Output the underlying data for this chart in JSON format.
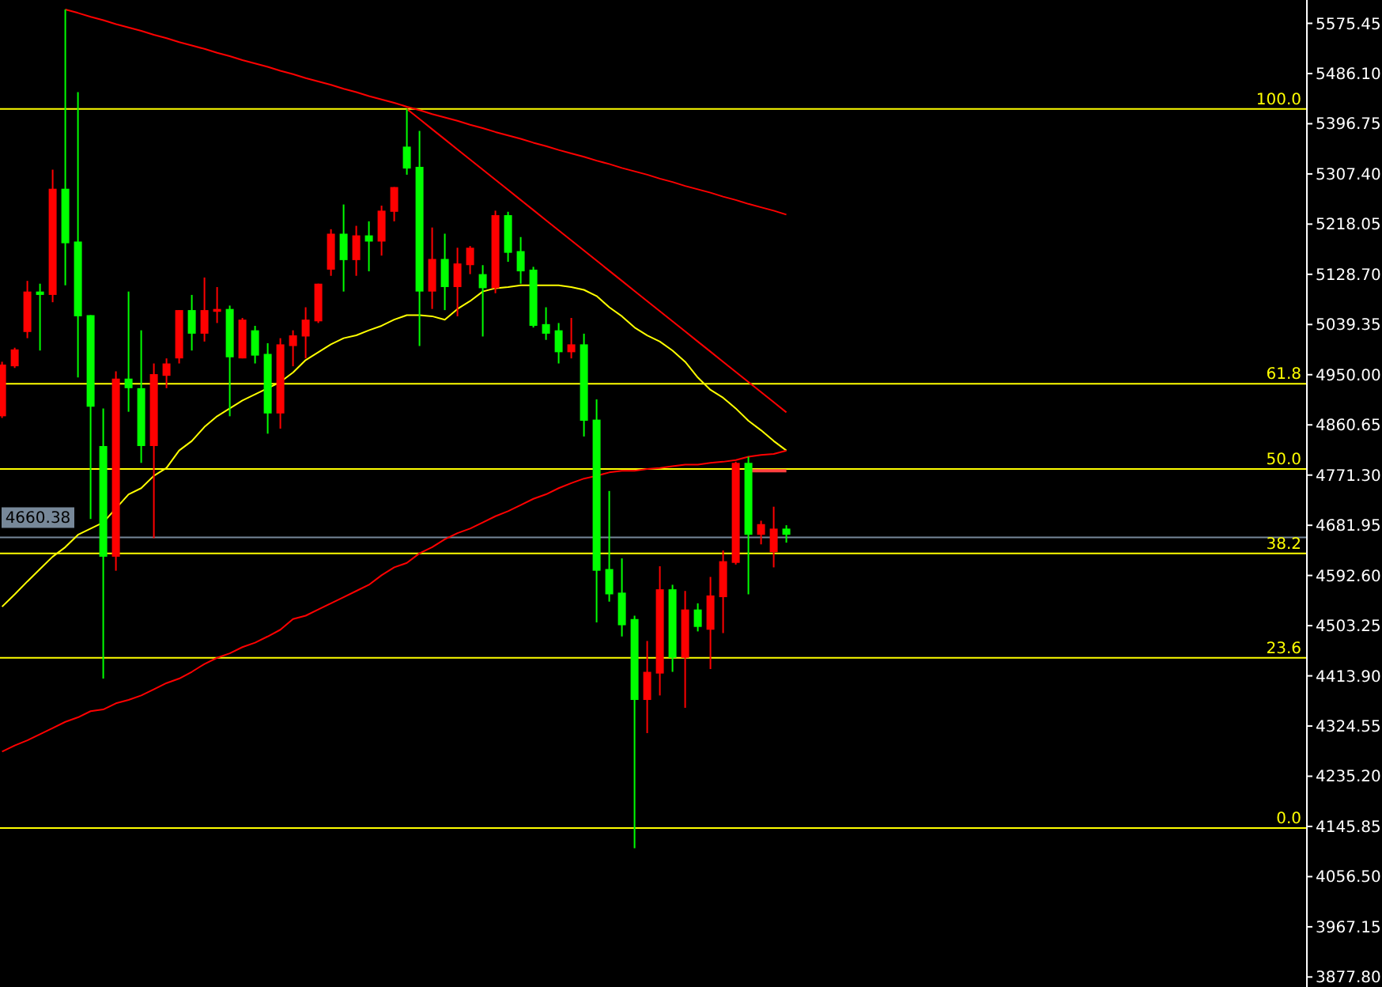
{
  "chart_data": {
    "type": "candlestick",
    "tick_labels": "y",
    "ylim": [
      3860,
      5617
    ],
    "yticks": [
      5575.45,
      {
        "value": 5486.1,
        "label": "5486.10"
      },
      5396.75,
      {
        "value": 5307.4,
        "label": "5307.40"
      },
      5218.05,
      {
        "value": 5128.7,
        "label": "5128.70"
      },
      5039.35,
      {
        "value": 4950,
        "label": "4950.00"
      },
      4860.65,
      {
        "value": 4771.3,
        "label": "4771.30"
      },
      4681.95,
      {
        "value": 4592.6,
        "label": "4592.60"
      },
      4503.25,
      {
        "value": 4413.9,
        "label": "4413.90"
      },
      4324.55,
      {
        "value": 4235.2,
        "label": "4235.20"
      },
      4145.85,
      {
        "value": 4056.5,
        "label": "4056.50"
      },
      3967.15,
      {
        "value": 3877.8,
        "label": "3877.80"
      }
    ],
    "categories": [
      null,
      null,
      null,
      null,
      null,
      null,
      null,
      null,
      null,
      null,
      null,
      null,
      null,
      null,
      null,
      null,
      null,
      null,
      null,
      null,
      null,
      null,
      null,
      null,
      null,
      null,
      null,
      null,
      null,
      null,
      null,
      null,
      null,
      null,
      null,
      null,
      null,
      null,
      null,
      null,
      null,
      null,
      null,
      null,
      null,
      null,
      null,
      null,
      null,
      null,
      null,
      null,
      null,
      null,
      null,
      null,
      null,
      null,
      null,
      null,
      null,
      null,
      null
    ],
    "ohlc": [
      [
        4876,
        4973,
        4873,
        4968
      ],
      [
        4965,
        4998,
        4962,
        4995
      ],
      [
        5026,
        5117,
        5015,
        5098
      ],
      [
        5098,
        5112,
        4993,
        5092
      ],
      [
        5092,
        5315,
        5079,
        5281
      ],
      [
        5281,
        5600,
        5109,
        5184
      ],
      [
        5187,
        5453,
        4945,
        5054
      ],
      [
        5056,
        5056,
        4693,
        4893
      ],
      [
        4823,
        4890,
        4409,
        4626
      ],
      [
        4626,
        4956,
        4601,
        4943
      ],
      [
        4943,
        5098,
        4884,
        4926
      ],
      [
        4926,
        5029,
        4793,
        4823
      ],
      [
        4823,
        4970,
        4659,
        4951
      ],
      [
        4948,
        4979,
        4926,
        4970
      ],
      [
        4979,
        5065,
        4970,
        5065
      ],
      [
        5065,
        5092,
        4993,
        5023
      ],
      [
        5023,
        5123,
        5009,
        5065
      ],
      [
        5062,
        5106,
        5042,
        5067
      ],
      [
        5067,
        5073,
        4876,
        4981
      ],
      [
        4979,
        5051,
        4979,
        5048
      ],
      [
        5029,
        5037,
        4970,
        4984
      ],
      [
        4987,
        5006,
        4845,
        4881
      ],
      [
        4881,
        5015,
        4854,
        5004
      ],
      [
        5001,
        5029,
        4965,
        5020
      ],
      [
        5018,
        5070,
        4979,
        5048
      ],
      [
        5045,
        5112,
        5042,
        5112
      ],
      [
        5137,
        5209,
        5126,
        5201
      ],
      [
        5201,
        5253,
        5098,
        5154
      ],
      [
        5154,
        5215,
        5126,
        5198
      ],
      [
        5198,
        5223,
        5134,
        5187
      ],
      [
        5187,
        5251,
        5162,
        5242
      ],
      [
        5240,
        5284,
        5223,
        5284
      ],
      [
        5356,
        5423,
        5306,
        5317
      ],
      [
        5320,
        5384,
        5001,
        5098
      ],
      [
        5098,
        5212,
        5067,
        5156
      ],
      [
        5156,
        5201,
        5065,
        5106
      ],
      [
        5106,
        5176,
        5054,
        5148
      ],
      [
        5145,
        5179,
        5129,
        5176
      ],
      [
        5129,
        5145,
        5018,
        5104
      ],
      [
        5104,
        5242,
        5095,
        5234
      ],
      [
        5234,
        5240,
        5151,
        5167
      ],
      [
        5170,
        5195,
        5112,
        5134
      ],
      [
        5137,
        5142,
        5034,
        5037
      ],
      [
        5040,
        5070,
        5012,
        5023
      ],
      [
        5029,
        5042,
        4970,
        4990
      ],
      [
        4990,
        5051,
        4979,
        5004
      ],
      [
        5004,
        5023,
        4840,
        4868
      ],
      [
        4870,
        4906,
        4509,
        4601
      ],
      [
        4604,
        4743,
        4546,
        4559
      ],
      [
        4562,
        4623,
        4484,
        4504
      ],
      [
        4515,
        4521,
        4107,
        4371
      ],
      [
        4371,
        4476,
        4312,
        4421
      ],
      [
        4418,
        4609,
        4379,
        4568
      ],
      [
        4568,
        4576,
        4421,
        4446
      ],
      [
        4446,
        4565,
        4357,
        4532
      ],
      [
        4532,
        4543,
        4493,
        4501
      ],
      [
        4496,
        4590,
        4426,
        4557
      ],
      [
        4554,
        4637,
        4490,
        4618
      ],
      [
        4615,
        4795,
        4612,
        4793
      ],
      [
        4793,
        4804,
        4559,
        4665
      ],
      [
        4665,
        4690,
        4648,
        4684
      ],
      [
        4634,
        4715,
        4607,
        4676
      ],
      [
        4676,
        4682,
        4651,
        4665
      ]
    ],
    "colors": [
      "#ff0000",
      "#ff0000",
      "#ff0000",
      "#00ff00",
      "#ff0000",
      "#00ff00",
      "#00ff00",
      "#00ff00",
      "#00ff00",
      "#ff0000",
      "#00ff00",
      "#00ff00",
      "#ff0000",
      "#ff0000",
      "#ff0000",
      "#00ff00",
      "#ff0000",
      "#ff0000",
      "#00ff00",
      "#ff0000",
      "#00ff00",
      "#00ff00",
      "#ff0000",
      "#ff0000",
      "#ff0000",
      "#ff0000",
      "#ff0000",
      "#00ff00",
      "#ff0000",
      "#00ff00",
      "#ff0000",
      "#ff0000",
      "#00ff00",
      "#00ff00",
      "#ff0000",
      "#00ff00",
      "#ff0000",
      "#ff0000",
      "#00ff00",
      "#ff0000",
      "#00ff00",
      "#00ff00",
      "#00ff00",
      "#00ff00",
      "#00ff00",
      "#ff0000",
      "#00ff00",
      "#00ff00",
      "#00ff00",
      "#00ff00",
      "#00ff00",
      "#ff0000",
      "#ff0000",
      "#00ff00",
      "#ff0000",
      "#00ff00",
      "#ff0000",
      "#ff0000",
      "#ff0000",
      "#00ff00",
      "#ff0000",
      "#ff0000",
      "#00ff00"
    ],
    "series": [
      {
        "type": "line",
        "color": "#ffff00",
        "values": [
          4537,
          4559,
          4582,
          4604,
          4626,
          4643,
          4665,
          4676,
          4687,
          4712,
          4737,
          4748,
          4770,
          4784,
          4815,
          4832,
          4857,
          4876,
          4890,
          4904,
          4915,
          4926,
          4937,
          4954,
          4976,
          4990,
          5004,
          5015,
          5020,
          5029,
          5037,
          5048,
          5056,
          5056,
          5054,
          5048,
          5067,
          5081,
          5098,
          5104,
          5106,
          5109,
          5109,
          5109,
          5109,
          5106,
          5101,
          5090,
          5070,
          5054,
          5034,
          5020,
          5009,
          4993,
          4973,
          4945,
          4923,
          4909,
          4890,
          4868,
          4851,
          4832,
          4815
        ]
      },
      {
        "type": "line",
        "color": "#ff0000",
        "values": [
          4279,
          4290,
          4299,
          4310,
          4321,
          4332,
          4340,
          4351,
          4354,
          4365,
          4371,
          4379,
          4390,
          4401,
          4409,
          4421,
          4435,
          4446,
          4454,
          4465,
          4473,
          4484,
          4496,
          4515,
          4521,
          4532,
          4543,
          4554,
          4565,
          4576,
          4593,
          4607,
          4615,
          4632,
          4643,
          4657,
          4668,
          4676,
          4687,
          4698,
          4707,
          4718,
          4729,
          4737,
          4748,
          4757,
          4765,
          4770,
          4776,
          4779,
          4779,
          4782,
          4784,
          4787,
          4790,
          4790,
          4793,
          4795,
          4798,
          4804,
          4807,
          4809,
          4815
        ]
      },
      {
        "type": "step",
        "color": "#ff4040",
        "values": [
          null,
          null,
          null,
          null,
          null,
          null,
          null,
          null,
          null,
          null,
          null,
          null,
          null,
          null,
          null,
          null,
          null,
          null,
          null,
          null,
          null,
          null,
          null,
          null,
          null,
          null,
          null,
          null,
          null,
          null,
          null,
          null,
          null,
          null,
          null,
          null,
          null,
          null,
          null,
          null,
          null,
          null,
          null,
          null,
          null,
          null,
          null,
          null,
          null,
          null,
          null,
          null,
          null,
          null,
          null,
          null,
          null,
          null,
          null,
          4779,
          4779,
          4779,
          4779
        ]
      },
      {
        "type": "line",
        "color": "#ff0000",
        "values": [
          null,
          null,
          null,
          null,
          null,
          5600,
          5594,
          5587,
          5581,
          5574,
          5568,
          5562,
          5555,
          5549,
          5542,
          5536,
          5530,
          5523,
          5517,
          5510,
          5504,
          5498,
          5491,
          5485,
          5478,
          5472,
          5466,
          5459,
          5453,
          5446,
          5440,
          5434,
          5427,
          5421,
          5414,
          5408,
          5402,
          5395,
          5389,
          5382,
          5376,
          5370,
          5363,
          5357,
          5350,
          5344,
          5338,
          5331,
          5325,
          5318,
          5312,
          5306,
          5299,
          5293,
          5286,
          5280,
          5274,
          5267,
          5261,
          5254,
          5248,
          5242,
          5235
        ]
      },
      {
        "type": "line",
        "color": "#ff0000",
        "values": [
          null,
          null,
          null,
          null,
          null,
          null,
          null,
          null,
          null,
          null,
          null,
          null,
          null,
          null,
          null,
          null,
          null,
          null,
          null,
          null,
          null,
          null,
          null,
          null,
          null,
          null,
          null,
          null,
          null,
          null,
          null,
          null,
          5423,
          5405,
          5387,
          5369,
          5351,
          5333,
          5315,
          5297,
          5279,
          5261,
          5243,
          5225,
          5207,
          5189,
          5171,
          5153,
          5135,
          5117,
          5099,
          5081,
          5063,
          5045,
          5027,
          5009,
          4991,
          4973,
          4955,
          4937,
          4919,
          4901,
          4883
        ]
      }
    ],
    "ref_lines": [
      {
        "axis": "y",
        "value": 4660.38,
        "label": "4660.38",
        "color": "#778899"
      },
      {
        "axis": "y",
        "value": 5423,
        "color": "#ffff00"
      },
      {
        "axis": "y",
        "value": 4934,
        "color": "#ffff00"
      },
      {
        "axis": "y",
        "value": 4782,
        "color": "#ffff00"
      },
      {
        "axis": "y",
        "value": 4632,
        "color": "#ffff00"
      },
      {
        "axis": "y",
        "value": 4446,
        "color": "#ffff00"
      },
      {
        "axis": "y",
        "value": 4143,
        "color": "#ffff00"
      }
    ],
    "annotations": [
      {
        "text": "100.0",
        "y": 5423
      },
      {
        "text": "61.8",
        "y": 4934
      },
      {
        "text": "50.0",
        "y": 4782
      },
      {
        "text": "38.2",
        "y": 4632
      },
      {
        "text": "23.6",
        "y": 4446
      },
      {
        "text": "0.0",
        "y": 4143
      }
    ]
  }
}
